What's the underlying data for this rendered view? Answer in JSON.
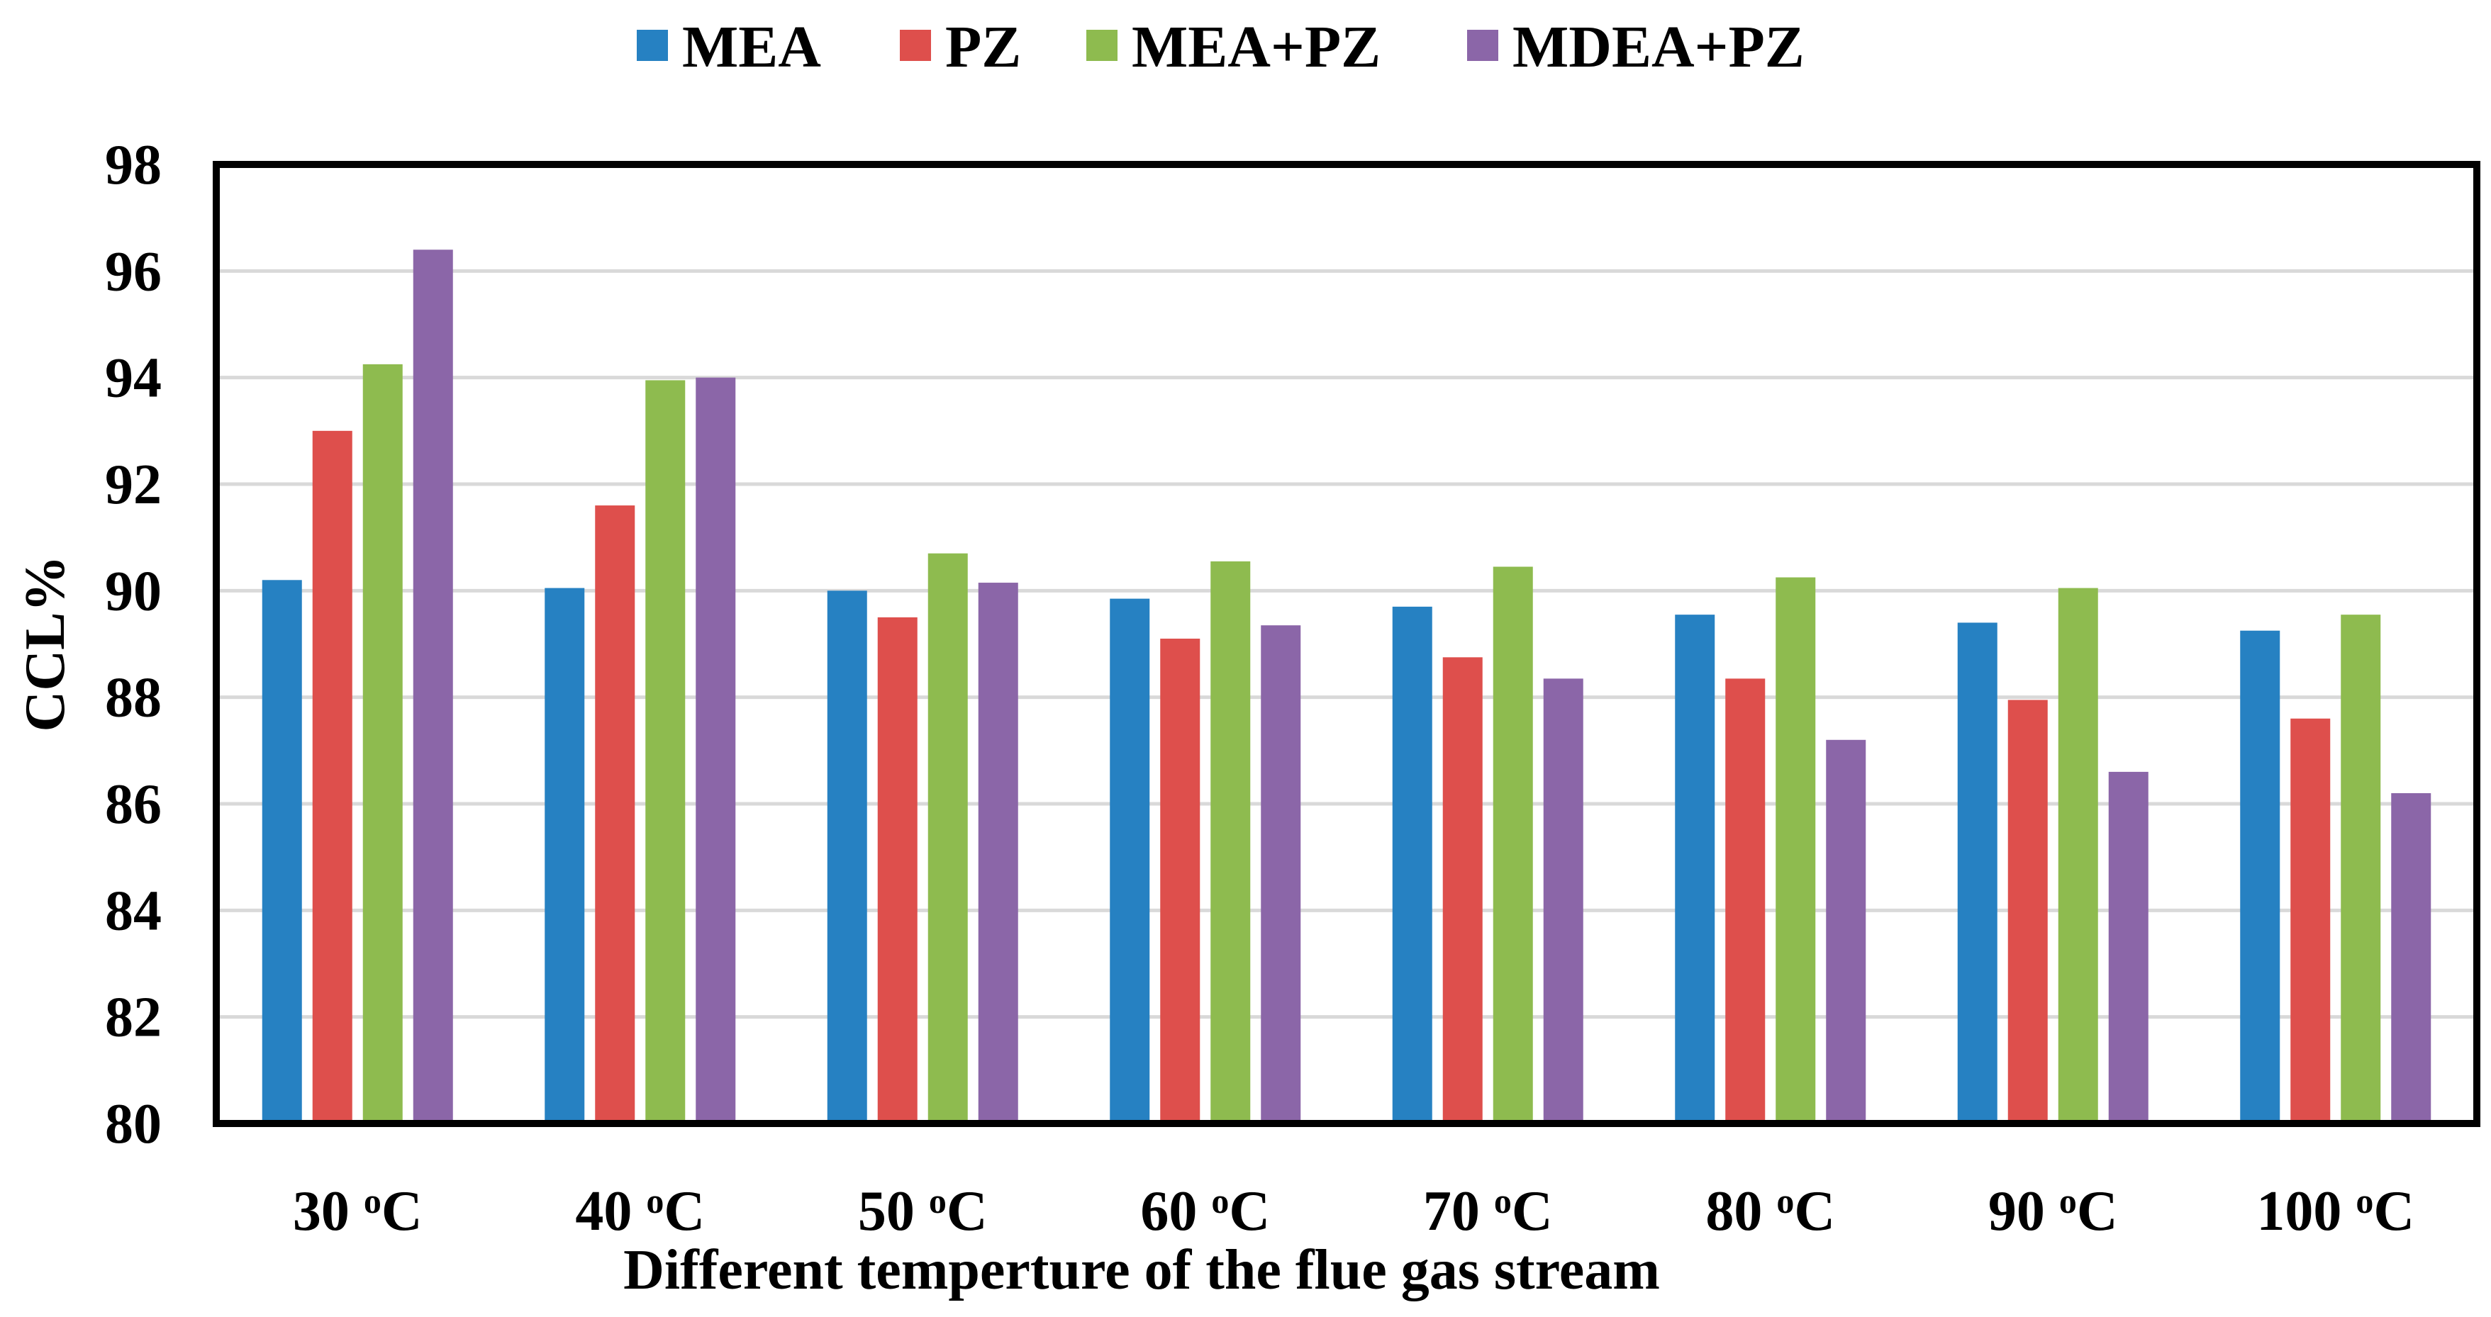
{
  "chart_data": {
    "type": "bar",
    "title": "",
    "xlabel": "Different temperture of the flue gas stream",
    "ylabel": "CCL%",
    "ylim": [
      80,
      98
    ],
    "yticks": [
      "80",
      "82",
      "84",
      "86",
      "88",
      "90",
      "92",
      "94",
      "96",
      "98"
    ],
    "grid": true,
    "legend_position": "top",
    "categories": [
      {
        "value": "30",
        "unit_sup": "o",
        "unit": "C"
      },
      {
        "value": "40",
        "unit_sup": "o",
        "unit": "C"
      },
      {
        "value": "50",
        "unit_sup": "o",
        "unit": "C"
      },
      {
        "value": "60",
        "unit_sup": "o",
        "unit": "C"
      },
      {
        "value": "70",
        "unit_sup": "o",
        "unit": "C"
      },
      {
        "value": "80",
        "unit_sup": "o",
        "unit": "C"
      },
      {
        "value": "90",
        "unit_sup": "o",
        "unit": "C"
      },
      {
        "value": "100",
        "unit_sup": "o",
        "unit": "C"
      }
    ],
    "series": [
      {
        "name": "MEA",
        "color": "#2681C2",
        "values": [
          90.2,
          90.05,
          90.0,
          89.85,
          89.7,
          89.55,
          89.4,
          89.25
        ]
      },
      {
        "name": "PZ",
        "color": "#DE4F4C",
        "values": [
          93.0,
          91.6,
          89.5,
          89.1,
          88.75,
          88.35,
          87.95,
          87.6
        ]
      },
      {
        "name": "MEA+PZ",
        "color": "#8EBB4F",
        "values": [
          94.25,
          93.95,
          90.7,
          90.55,
          90.45,
          90.25,
          90.05,
          89.55
        ]
      },
      {
        "name": "MDEA+PZ",
        "color": "#8B66A8",
        "values": [
          96.4,
          94.0,
          90.15,
          89.35,
          88.35,
          87.2,
          86.6,
          86.2
        ]
      }
    ]
  }
}
